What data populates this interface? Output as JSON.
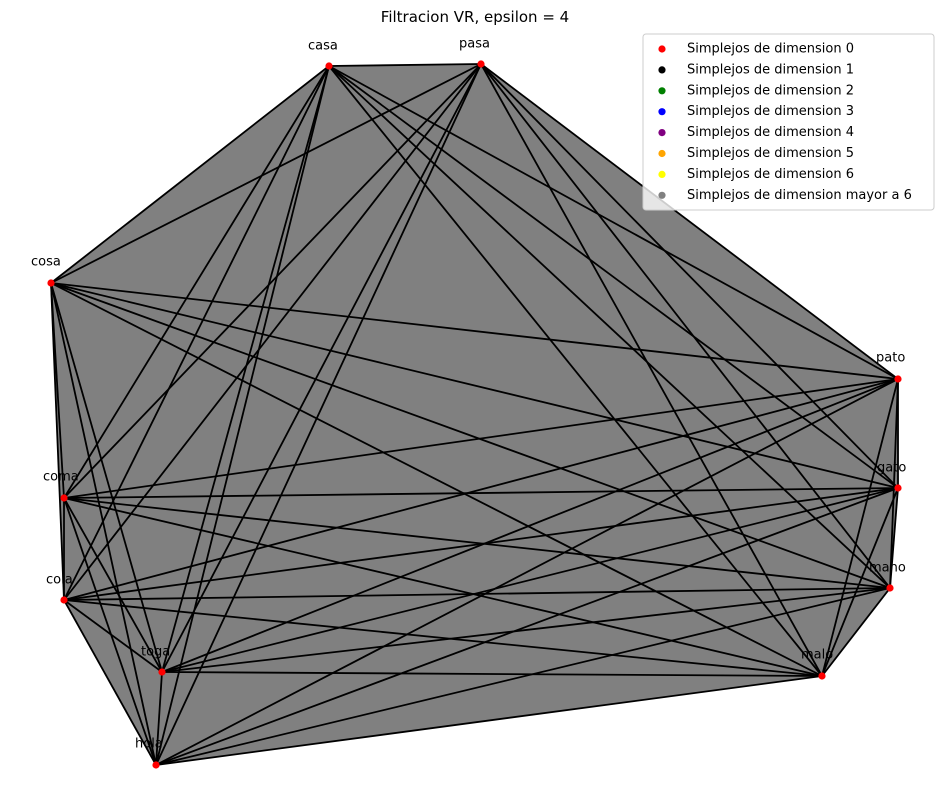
{
  "title": "Filtracion VR, epsilon = 4",
  "nodes": [
    {
      "id": "casa",
      "label": "casa"
    },
    {
      "id": "pasa",
      "label": "pasa"
    },
    {
      "id": "cosa",
      "label": "cosa"
    },
    {
      "id": "pato",
      "label": "pato"
    },
    {
      "id": "gato",
      "label": "gato"
    },
    {
      "id": "coma",
      "label": "coma"
    },
    {
      "id": "cola",
      "label": "cola"
    },
    {
      "id": "mano",
      "label": "mano"
    },
    {
      "id": "toga",
      "label": "toga"
    },
    {
      "id": "malo",
      "label": "malo"
    },
    {
      "id": "hola",
      "label": "hola"
    }
  ],
  "edges": "complete",
  "colors": {
    "fill": "#808080",
    "edge": "#000000",
    "node": "#ff0000"
  },
  "legend": {
    "placement": "top-right",
    "items": [
      {
        "label": "Simplejos de dimension 0",
        "color": "#ff0000"
      },
      {
        "label": "Simplejos de dimension 1",
        "color": "#000000"
      },
      {
        "label": "Simplejos de dimension 2",
        "color": "#008000"
      },
      {
        "label": "Simplejos de dimension 3",
        "color": "#0000ff"
      },
      {
        "label": "Simplejos de dimension 4",
        "color": "#800080"
      },
      {
        "label": "Simplejos de dimension 5",
        "color": "#ffa500"
      },
      {
        "label": "Simplejos de dimension 6",
        "color": "#ffff00"
      },
      {
        "label": "Simplejos de dimension mayor a 6",
        "color": "#808080"
      }
    ]
  }
}
